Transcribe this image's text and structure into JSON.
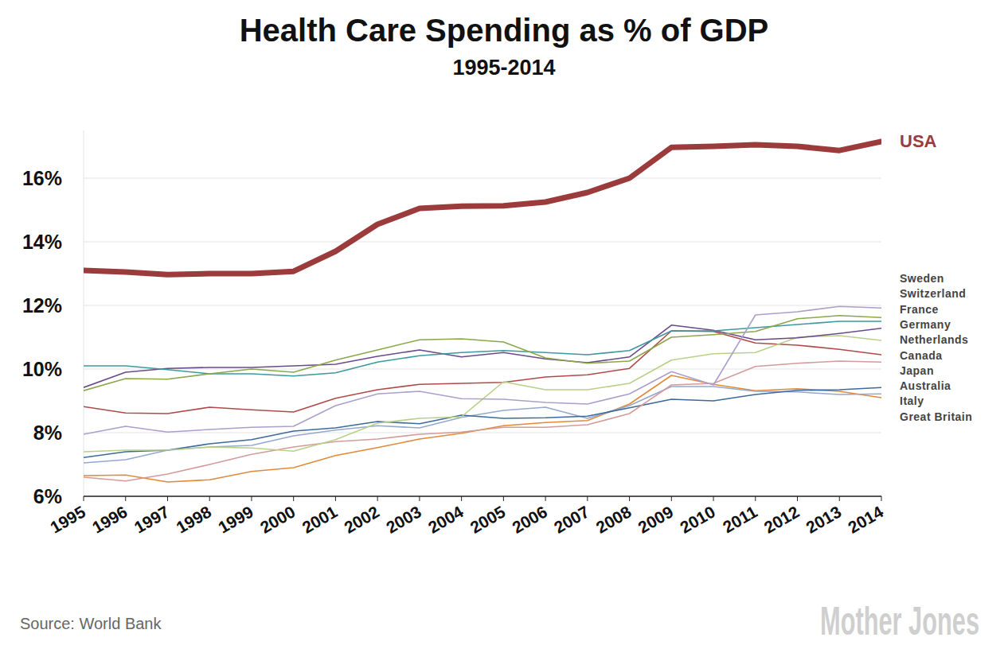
{
  "chart_data": {
    "type": "line",
    "title": "Health Care Spending as % of GDP",
    "subtitle": "1995-2014",
    "source": "Source: World Bank",
    "credit": "Mother Jones",
    "x": [
      1995,
      1996,
      1997,
      1998,
      1999,
      2000,
      2001,
      2002,
      2003,
      2004,
      2005,
      2006,
      2007,
      2008,
      2009,
      2010,
      2011,
      2012,
      2013,
      2014
    ],
    "xlim": [
      1995,
      2014
    ],
    "xticks": [
      1995,
      1996,
      1997,
      1998,
      1999,
      2000,
      2001,
      2002,
      2003,
      2004,
      2005,
      2006,
      2007,
      2008,
      2009,
      2010,
      2011,
      2012,
      2013,
      2014
    ],
    "ylim": [
      6,
      17.5
    ],
    "yticks": [
      {
        "value": 6,
        "label": "6%"
      },
      {
        "value": 8,
        "label": "8%"
      },
      {
        "value": 10,
        "label": "10%"
      },
      {
        "value": 12,
        "label": "12%"
      },
      {
        "value": 14,
        "label": "14%"
      },
      {
        "value": 16,
        "label": "16%"
      }
    ],
    "grid": true,
    "legend": "right",
    "series": [
      {
        "name": "USA",
        "color": "#9b3b3b",
        "values": [
          13.1,
          13.05,
          12.97,
          13.0,
          13.0,
          13.07,
          13.7,
          14.55,
          15.05,
          15.12,
          15.13,
          15.25,
          15.55,
          16.0,
          16.97,
          17.0,
          17.05,
          17.0,
          16.87,
          17.15
        ]
      },
      {
        "name": "Sweden",
        "color": "#ab9fcb",
        "values": [
          7.95,
          8.2,
          8.02,
          8.1,
          8.17,
          8.2,
          8.85,
          9.22,
          9.3,
          9.07,
          9.05,
          8.95,
          8.9,
          9.22,
          9.92,
          9.5,
          11.7,
          11.8,
          11.97,
          11.92
        ]
      },
      {
        "name": "Switzerland",
        "color": "#8aa84a",
        "values": [
          9.32,
          9.7,
          9.68,
          9.85,
          10.0,
          9.9,
          10.28,
          10.6,
          10.92,
          10.95,
          10.85,
          10.35,
          10.18,
          10.25,
          11.0,
          11.08,
          11.18,
          11.58,
          11.68,
          11.62
        ]
      },
      {
        "name": "France",
        "color": "#3a9aa0",
        "values": [
          10.1,
          10.1,
          9.98,
          9.85,
          9.85,
          9.78,
          9.88,
          10.22,
          10.42,
          10.52,
          10.58,
          10.52,
          10.45,
          10.58,
          11.2,
          11.2,
          11.3,
          11.4,
          11.5,
          11.5
        ]
      },
      {
        "name": "Germany",
        "color": "#6b4a8a",
        "values": [
          9.42,
          9.9,
          10.02,
          10.05,
          10.05,
          10.1,
          10.15,
          10.4,
          10.6,
          10.38,
          10.52,
          10.32,
          10.2,
          10.38,
          11.38,
          11.22,
          10.92,
          10.98,
          11.12,
          11.28
        ]
      },
      {
        "name": "Netherlands",
        "color": "#b9d08a",
        "values": [
          7.4,
          7.45,
          7.45,
          7.55,
          7.52,
          7.42,
          7.78,
          8.3,
          8.45,
          8.5,
          9.6,
          9.35,
          9.35,
          9.55,
          10.28,
          10.48,
          10.52,
          11.0,
          11.05,
          10.9
        ]
      },
      {
        "name": "Canada",
        "color": "#b04a4a",
        "values": [
          8.82,
          8.62,
          8.6,
          8.8,
          8.72,
          8.65,
          9.08,
          9.35,
          9.52,
          9.55,
          9.58,
          9.75,
          9.82,
          10.02,
          11.2,
          11.18,
          10.82,
          10.75,
          10.62,
          10.45
        ]
      },
      {
        "name": "Japan",
        "color": "#d49b9b",
        "values": [
          6.6,
          6.48,
          6.7,
          7.0,
          7.32,
          7.55,
          7.72,
          7.8,
          7.95,
          8.02,
          8.17,
          8.17,
          8.25,
          8.6,
          9.5,
          9.55,
          10.08,
          10.18,
          10.25,
          10.22
        ]
      },
      {
        "name": "Australia",
        "color": "#3d6a9a",
        "values": [
          7.22,
          7.4,
          7.45,
          7.65,
          7.78,
          8.05,
          8.15,
          8.35,
          8.28,
          8.55,
          8.45,
          8.47,
          8.52,
          8.78,
          9.05,
          9.0,
          9.2,
          9.33,
          9.35,
          9.42
        ]
      },
      {
        "name": "Italy",
        "color": "#94a8d0",
        "values": [
          7.05,
          7.15,
          7.45,
          7.55,
          7.6,
          7.9,
          8.08,
          8.22,
          8.15,
          8.48,
          8.7,
          8.8,
          8.45,
          8.85,
          9.45,
          9.45,
          9.3,
          9.28,
          9.2,
          9.22
        ]
      },
      {
        "name": "Great Britain",
        "color": "#e08a3a",
        "values": [
          6.65,
          6.67,
          6.45,
          6.52,
          6.78,
          6.9,
          7.28,
          7.53,
          7.8,
          7.98,
          8.22,
          8.32,
          8.38,
          8.9,
          9.8,
          9.52,
          9.32,
          9.38,
          9.3,
          9.1
        ]
      }
    ]
  }
}
